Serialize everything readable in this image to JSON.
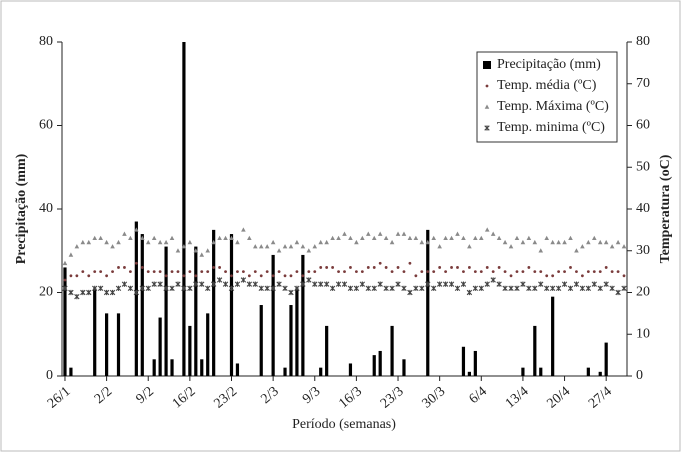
{
  "chart_data": {
    "type": "bar",
    "xlabel": "Período (semanas)",
    "ylabel": "Precipitação (mm)",
    "y2label": "Temperatura (oC)",
    "categories": [
      "26/1",
      null,
      null,
      null,
      null,
      null,
      null,
      "2/2",
      null,
      null,
      null,
      null,
      null,
      null,
      "9/2",
      null,
      null,
      null,
      null,
      null,
      null,
      "16/2",
      null,
      null,
      null,
      null,
      null,
      null,
      "23/2",
      null,
      null,
      null,
      null,
      null,
      null,
      "2/3",
      null,
      null,
      null,
      null,
      null,
      null,
      "9/3",
      null,
      null,
      null,
      null,
      null,
      null,
      "16/3",
      null,
      null,
      null,
      null,
      null,
      null,
      "23/3",
      null,
      null,
      null,
      null,
      null,
      null,
      "30/3",
      null,
      null,
      null,
      null,
      null,
      null,
      "6/4",
      null,
      null,
      null,
      null,
      null,
      null,
      "13/4",
      null,
      null,
      null,
      null,
      null,
      null,
      "20/4",
      null,
      null,
      null,
      null,
      null,
      null,
      "27/4",
      null,
      null,
      null
    ],
    "series": [
      {
        "name": "Precipitação (mm)",
        "type": "bar",
        "marker": "square",
        "color": "#000000",
        "values": [
          26,
          2,
          0,
          0,
          0,
          21,
          0,
          15,
          0,
          15,
          0,
          0,
          37,
          34,
          0,
          4,
          14,
          31,
          4,
          0,
          80,
          12,
          31,
          4,
          15,
          35,
          0,
          0,
          34,
          3,
          0,
          0,
          0,
          17,
          0,
          29,
          0,
          2,
          17,
          21,
          29,
          0,
          0,
          2,
          12,
          0,
          0,
          0,
          3,
          0,
          0,
          0,
          5,
          6,
          0,
          12,
          0,
          4,
          0,
          0,
          0,
          35,
          0,
          0,
          0,
          0,
          0,
          7,
          1,
          6,
          0,
          0,
          0,
          0,
          0,
          0,
          0,
          2,
          0,
          12,
          2,
          0,
          19,
          0,
          0,
          0,
          0,
          0,
          2,
          0,
          1,
          8,
          0,
          0,
          0
        ]
      },
      {
        "name": "Temp. média (ºC)",
        "type": "scatter",
        "marker": "dot",
        "axis": "y2",
        "color": "#7a3b3b",
        "values": [
          23,
          24,
          24,
          25,
          24,
          25,
          25,
          24,
          25,
          26,
          26,
          25,
          27,
          26,
          25,
          25,
          25,
          24,
          25,
          25,
          24,
          25,
          24,
          25,
          25,
          26,
          26,
          25,
          24,
          25,
          25,
          24,
          25,
          24,
          25,
          24,
          25,
          24,
          24,
          25,
          24,
          25,
          25,
          26,
          26,
          26,
          25,
          25,
          26,
          25,
          25,
          26,
          26,
          27,
          26,
          25,
          26,
          25,
          27,
          24,
          25,
          25,
          25,
          26,
          25,
          26,
          26,
          25,
          26,
          25,
          25,
          26,
          25,
          26,
          25,
          24,
          25,
          25,
          26,
          25,
          25,
          24,
          24,
          25,
          25,
          26,
          25,
          24,
          25,
          25,
          25,
          26,
          25,
          25,
          24
        ]
      },
      {
        "name": "Temp. Máxima (ºC)",
        "type": "scatter",
        "marker": "triangle",
        "axis": "y2",
        "color": "#8a8a8a",
        "values": [
          27,
          29,
          31,
          32,
          32,
          33,
          33,
          32,
          31,
          32,
          34,
          33,
          35,
          33,
          32,
          33,
          32,
          32,
          33,
          30,
          31,
          32,
          30,
          29,
          30,
          32,
          33,
          33,
          33,
          32,
          35,
          33,
          31,
          31,
          31,
          32,
          30,
          31,
          31,
          32,
          31,
          30,
          31,
          32,
          32,
          33,
          33,
          34,
          33,
          32,
          33,
          34,
          33,
          34,
          33,
          32,
          34,
          34,
          33,
          33,
          32,
          32,
          33,
          31,
          33,
          33,
          34,
          33,
          31,
          33,
          33,
          35,
          34,
          33,
          32,
          31,
          33,
          32,
          33,
          32,
          30,
          33,
          32,
          32,
          32,
          33,
          30,
          31,
          32,
          33,
          32,
          32,
          31,
          32,
          31
        ]
      },
      {
        "name": "Temp. minima (ºC)",
        "type": "scatter",
        "marker": "x",
        "axis": "y2",
        "color": "#444444",
        "values": [
          21,
          20,
          19,
          20,
          20,
          21,
          21,
          20,
          20,
          21,
          22,
          21,
          20,
          21,
          21,
          22,
          22,
          21,
          21,
          22,
          21,
          21,
          22,
          22,
          21,
          22,
          23,
          22,
          21,
          22,
          23,
          22,
          22,
          21,
          21,
          21,
          22,
          21,
          20,
          21,
          22,
          23,
          22,
          22,
          22,
          21,
          22,
          22,
          21,
          21,
          22,
          21,
          21,
          22,
          21,
          21,
          22,
          21,
          20,
          21,
          21,
          22,
          21,
          22,
          22,
          22,
          21,
          22,
          20,
          21,
          21,
          22,
          23,
          22,
          21,
          21,
          21,
          22,
          21,
          21,
          22,
          21,
          21,
          21,
          22,
          21,
          22,
          21,
          21,
          22,
          21,
          22,
          21,
          20,
          21
        ]
      }
    ],
    "ylim": [
      0,
      80
    ],
    "yticks": [
      0,
      20,
      40,
      60,
      80
    ],
    "y2lim": [
      0,
      80
    ],
    "y2ticks": [
      0,
      10,
      20,
      30,
      40,
      50,
      60,
      70,
      80
    ],
    "legend": "top-right"
  }
}
